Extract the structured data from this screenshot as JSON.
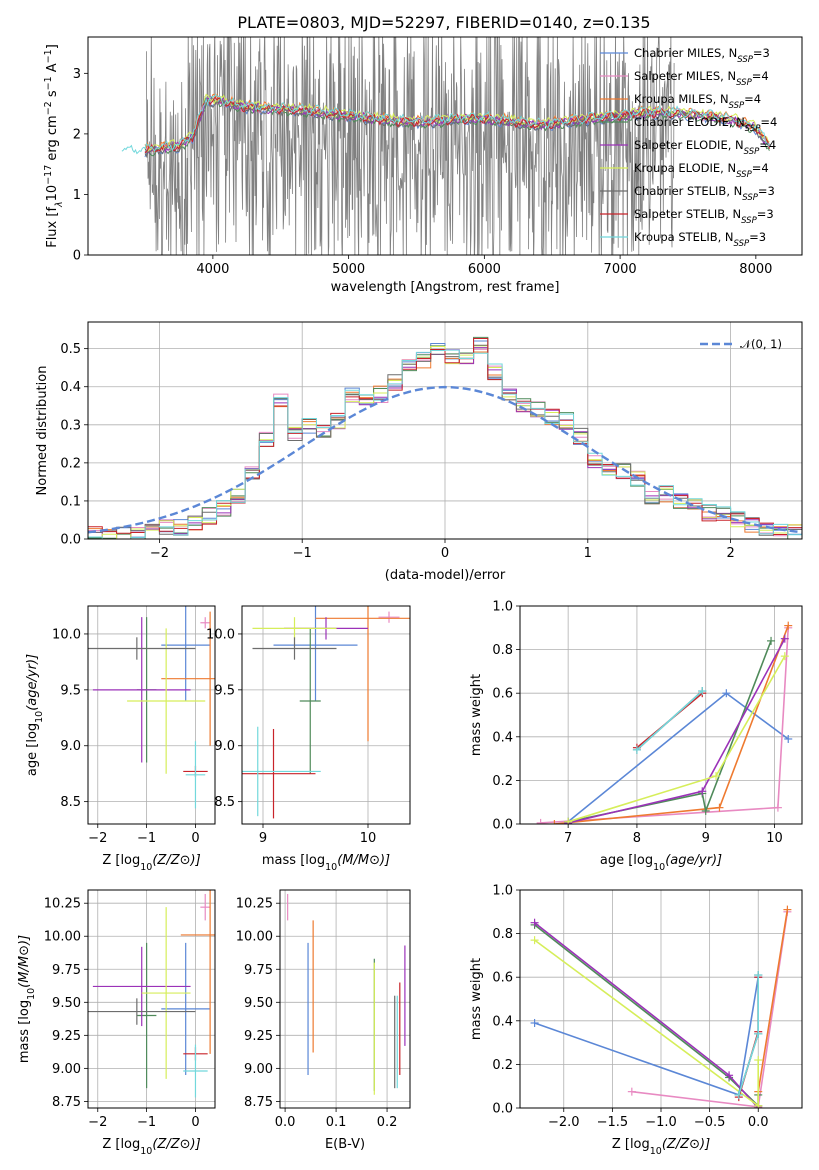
{
  "colors": {
    "Chabrier MILES": "#5b87d6",
    "Salpeter MILES": "#e88ac2",
    "Kroupa MILES": "#ee7a30",
    "Chabrier ELODIE": "#4f8a5a",
    "Salpeter ELODIE": "#9b32b8",
    "Kroupa ELODIE": "#d6ee5a",
    "Chabrier STELIB": "#6d6d6d",
    "Salpeter STELIB": "#c8232a",
    "Kroupa STELIB": "#72d8dc",
    "gaussian": "#5b87d6",
    "spectrum": "#808080"
  },
  "chart_data": [
    {
      "id": "spectrum",
      "type": "line",
      "title": "PLATE=0803, MJD=52297, FIBERID=0140, z=0.135",
      "xlabel": "wavelength [Angstrom, rest frame]",
      "ylabel": "Flux [f",
      "ylabel_sub": "λ",
      "ylabel_rest": "10",
      "ylabel_sup1": "−17",
      "ylabel_mid": " erg cm",
      "ylabel_sup2": "−2",
      "ylabel_mid2": " s",
      "ylabel_sup3": "−1",
      "ylabel_mid3": " A",
      "ylabel_sup4": "−1",
      "ylabel_end": "]",
      "xlim": [
        3080,
        8340
      ],
      "ylim": [
        0,
        3.6
      ],
      "xticks": [
        "4000",
        "5000",
        "6000",
        "7000",
        "8000"
      ],
      "xtick_values": [
        4000,
        5000,
        6000,
        7000,
        8000
      ],
      "yticks": [
        "0",
        "1",
        "2",
        "3"
      ],
      "ytick_values": [
        0,
        1,
        2,
        3
      ],
      "legend_position": "upper-right",
      "legend": [
        {
          "name": "Chabrier MILES",
          "sub": "SSP",
          "n": "3"
        },
        {
          "name": "Salpeter MILES",
          "sub": "SSP",
          "n": "4"
        },
        {
          "name": "Kroupa MILES",
          "sub": "SSP",
          "n": "4"
        },
        {
          "name": "Chabrier ELODIE",
          "sub": "SSP",
          "n": "4"
        },
        {
          "name": "Salpeter ELODIE",
          "sub": "SSP",
          "n": "4"
        },
        {
          "name": "Kroupa ELODIE",
          "sub": "SSP",
          "n": "4"
        },
        {
          "name": "Chabrier STELIB",
          "sub": "SSP",
          "n": "3"
        },
        {
          "name": "Salpeter STELIB",
          "sub": "SSP",
          "n": "3"
        },
        {
          "name": "Kroupa STELIB",
          "sub": "SSP",
          "n": "3"
        }
      ],
      "model_continuum": {
        "x": [
          3330,
          3450,
          3550,
          3650,
          3750,
          3850,
          3950,
          4050,
          4200,
          4400,
          4600,
          4800,
          5000,
          5200,
          5400,
          5600,
          5800,
          6000,
          6200,
          6400,
          6600,
          6800,
          7000,
          7200,
          7400,
          7600,
          7800,
          8000,
          8100
        ],
        "y": [
          1.72,
          1.7,
          1.75,
          1.78,
          1.8,
          1.95,
          2.55,
          2.55,
          2.45,
          2.42,
          2.4,
          2.35,
          2.3,
          2.25,
          2.2,
          2.2,
          2.25,
          2.25,
          2.2,
          2.15,
          2.2,
          2.25,
          2.3,
          2.35,
          2.35,
          2.3,
          2.25,
          2.1,
          1.8
        ]
      }
    },
    {
      "id": "residuals",
      "type": "histogram",
      "xlabel": "(data-model)/error",
      "ylabel": "Normed distribution",
      "xlim": [
        -2.5,
        2.5
      ],
      "ylim": [
        0,
        0.57
      ],
      "xticks": [
        "−2",
        "−1",
        "0",
        "1",
        "2"
      ],
      "xtick_values": [
        -2,
        -1,
        0,
        1,
        2
      ],
      "yticks": [
        "0.0",
        "0.1",
        "0.2",
        "0.3",
        "0.4",
        "0.5"
      ],
      "ytick_values": [
        0,
        0.1,
        0.2,
        0.3,
        0.4,
        0.5
      ],
      "legend": "𝒩(0, 1)",
      "bins": [
        -2.5,
        -2.4,
        -2.3,
        -2.2,
        -2.1,
        -2.0,
        -1.9,
        -1.8,
        -1.7,
        -1.6,
        -1.5,
        -1.4,
        -1.3,
        -1.2,
        -1.1,
        -1.0,
        -0.9,
        -0.8,
        -0.7,
        -0.6,
        -0.5,
        -0.4,
        -0.3,
        -0.2,
        -0.1,
        0.0,
        0.1,
        0.2,
        0.3,
        0.4,
        0.5,
        0.6,
        0.7,
        0.8,
        0.9,
        1.0,
        1.1,
        1.2,
        1.3,
        1.4,
        1.5,
        1.6,
        1.7,
        1.8,
        1.9,
        2.0,
        2.1,
        2.2,
        2.3,
        2.4,
        2.5
      ],
      "base_values": [
        0.01,
        0.005,
        0.01,
        0.01,
        0.02,
        0.03,
        0.03,
        0.04,
        0.06,
        0.08,
        0.11,
        0.17,
        0.26,
        0.36,
        0.28,
        0.3,
        0.28,
        0.31,
        0.38,
        0.37,
        0.38,
        0.41,
        0.45,
        0.47,
        0.5,
        0.48,
        0.47,
        0.51,
        0.44,
        0.38,
        0.35,
        0.34,
        0.32,
        0.31,
        0.27,
        0.21,
        0.19,
        0.18,
        0.16,
        0.11,
        0.12,
        0.1,
        0.1,
        0.07,
        0.07,
        0.05,
        0.04,
        0.03,
        0.02,
        0.02
      ],
      "gaussian": {
        "mu": 0,
        "sigma": 1
      }
    },
    {
      "id": "age-vs-Z",
      "type": "errorbar",
      "xlabel": "Z [log",
      "xlabel_sub": "10",
      "xlabel_end": "(Z/Z⊙)]",
      "ylabel": "age  [log",
      "ylabel_sub": "10",
      "ylabel_end": "(age/yr)]",
      "xlim": [
        -2.2,
        0.4
      ],
      "ylim": [
        8.3,
        10.25
      ],
      "xticks": [
        "−2",
        "−1",
        "0"
      ],
      "xtick_values": [
        -2,
        -1,
        0
      ],
      "yticks": [
        "8.5",
        "9.0",
        "9.5",
        "10.0"
      ],
      "ytick_values": [
        8.5,
        9.0,
        9.5,
        10.0
      ],
      "points": [
        {
          "model": "Chabrier MILES",
          "x": -0.2,
          "y": 9.9,
          "xerr": 0.5,
          "yerr": 0.5
        },
        {
          "model": "Salpeter MILES",
          "x": 0.2,
          "y": 10.1,
          "xerr": 0.1,
          "yerr": 0.05
        },
        {
          "model": "Kroupa MILES",
          "x": 0.3,
          "y": 9.6,
          "xerr": 1.0,
          "yerr": 0.6
        },
        {
          "model": "Chabrier ELODIE",
          "x": -1.0,
          "y": 9.5,
          "xerr": 0.2,
          "yerr": 0.65
        },
        {
          "model": "Salpeter ELODIE",
          "x": -1.1,
          "y": 9.5,
          "xerr": 1.0,
          "yerr": 0.65
        },
        {
          "model": "Kroupa ELODIE",
          "x": -0.6,
          "y": 9.4,
          "xerr": 0.8,
          "yerr": 0.65
        },
        {
          "model": "Chabrier STELIB",
          "x": -1.2,
          "y": 9.87,
          "xerr": 1.2,
          "yerr": 0.1
        },
        {
          "model": "Salpeter STELIB",
          "x": 0.0,
          "y": 8.77,
          "xerr": 0.25,
          "yerr": 0.05
        },
        {
          "model": "Kroupa STELIB",
          "x": 0.0,
          "y": 8.74,
          "xerr": 0.2,
          "yerr": 0.3
        }
      ]
    },
    {
      "id": "age-vs-mass",
      "type": "errorbar",
      "xlabel": "mass [log",
      "xlabel_sub": "10",
      "xlabel_end": "(M/M⊙)]",
      "xlim": [
        8.8,
        10.4
      ],
      "ylim": [
        8.3,
        10.25
      ],
      "xticks": [
        "9",
        "10"
      ],
      "xtick_values": [
        9,
        10
      ],
      "yticks": [
        "8.5",
        "9.0",
        "9.5",
        "10.0"
      ],
      "ytick_values": [
        8.5,
        9.0,
        9.5,
        10.0
      ],
      "points": [
        {
          "model": "Chabrier MILES",
          "x": 9.5,
          "y": 9.9,
          "xerr": 0.4,
          "yerr": 0.5
        },
        {
          "model": "Salpeter MILES",
          "x": 10.2,
          "y": 10.15,
          "xerr": 0.1,
          "yerr": 0.05
        },
        {
          "model": "Kroupa MILES",
          "x": 10.0,
          "y": 10.14,
          "xerr": 0.5,
          "yerr": 1.1
        },
        {
          "model": "Chabrier ELODIE",
          "x": 9.45,
          "y": 9.4,
          "xerr": 0.1,
          "yerr": 0.65
        },
        {
          "model": "Salpeter ELODIE",
          "x": 9.6,
          "y": 10.05,
          "xerr": 0.4,
          "yerr": 0.1
        },
        {
          "model": "Kroupa ELODIE",
          "x": 9.3,
          "y": 10.05,
          "xerr": 0.4,
          "yerr": 0.1
        },
        {
          "model": "Chabrier STELIB",
          "x": 9.3,
          "y": 9.87,
          "xerr": 0.4,
          "yerr": 0.1
        },
        {
          "model": "Salpeter STELIB",
          "x": 9.1,
          "y": 8.75,
          "xerr": 0.4,
          "yerr": 0.4
        },
        {
          "model": "Kroupa STELIB",
          "x": 8.95,
          "y": 8.77,
          "xerr": 0.6,
          "yerr": 0.4
        }
      ]
    },
    {
      "id": "weight-vs-age",
      "type": "line",
      "xlabel": "age  [log",
      "xlabel_sub": "10",
      "xlabel_end": "(age/yr)]",
      "ylabel": "mass weight",
      "xlim": [
        6.3,
        10.4
      ],
      "ylim": [
        0,
        1.0
      ],
      "xticks": [
        "7",
        "8",
        "9",
        "10"
      ],
      "xtick_values": [
        7,
        8,
        9,
        10
      ],
      "yticks": [
        "0.0",
        "0.2",
        "0.4",
        "0.6",
        "0.8",
        "1.0"
      ],
      "ytick_values": [
        0,
        0.2,
        0.4,
        0.6,
        0.8,
        1.0
      ],
      "series": [
        {
          "model": "Chabrier MILES",
          "x": [
            7.0,
            9.3,
            10.2
          ],
          "y": [
            0.01,
            0.6,
            0.39
          ]
        },
        {
          "model": "Salpeter MILES",
          "x": [
            6.6,
            10.05,
            10.2
          ],
          "y": [
            0.005,
            0.075,
            0.9
          ]
        },
        {
          "model": "Kroupa MILES",
          "x": [
            6.8,
            9.2,
            10.2
          ],
          "y": [
            0.0,
            0.075,
            0.91
          ]
        },
        {
          "model": "Chabrier ELODIE",
          "x": [
            7.0,
            8.95,
            9.0,
            9.95
          ],
          "y": [
            0.01,
            0.14,
            0.06,
            0.84
          ]
        },
        {
          "model": "Salpeter ELODIE",
          "x": [
            7.0,
            8.95,
            10.15
          ],
          "y": [
            0.005,
            0.15,
            0.85
          ]
        },
        {
          "model": "Kroupa ELODIE",
          "x": [
            7.0,
            9.15,
            10.15
          ],
          "y": [
            0.01,
            0.22,
            0.77
          ]
        },
        {
          "model": "Chabrier STELIB",
          "x": [
            8.0,
            8.95
          ],
          "y": [
            0.34,
            0.61
          ]
        },
        {
          "model": "Salpeter STELIB",
          "x": [
            8.0,
            8.95
          ],
          "y": [
            0.35,
            0.6
          ]
        },
        {
          "model": "Kroupa STELIB",
          "x": [
            8.0,
            8.95
          ],
          "y": [
            0.34,
            0.61
          ]
        }
      ]
    },
    {
      "id": "mass-vs-Z",
      "type": "errorbar",
      "xlabel": "Z [log",
      "xlabel_sub": "10",
      "xlabel_end": "(Z/Z⊙)]",
      "ylabel": "mass [log",
      "ylabel_sub": "10",
      "ylabel_end": "(M/M⊙)]",
      "xlim": [
        -2.2,
        0.4
      ],
      "ylim": [
        8.7,
        10.35
      ],
      "xticks": [
        "−2",
        "−1",
        "0"
      ],
      "xtick_values": [
        -2,
        -1,
        0
      ],
      "yticks": [
        "8.75",
        "9.00",
        "9.25",
        "9.50",
        "9.75",
        "10.00",
        "10.25"
      ],
      "ytick_values": [
        8.75,
        9.0,
        9.25,
        9.5,
        9.75,
        10.0,
        10.25
      ],
      "points": [
        {
          "model": "Chabrier MILES",
          "x": -0.2,
          "y": 9.45,
          "xerr": 0.5,
          "yerr": 0.5
        },
        {
          "model": "Salpeter MILES",
          "x": 0.2,
          "y": 10.22,
          "xerr": 0.1,
          "yerr": 0.1
        },
        {
          "model": "Kroupa MILES",
          "x": 0.3,
          "y": 10.01,
          "xerr": 0.6,
          "yerr": 0.9
        },
        {
          "model": "Chabrier ELODIE",
          "x": -1.0,
          "y": 9.4,
          "xerr": 0.2,
          "yerr": 0.55
        },
        {
          "model": "Salpeter ELODIE",
          "x": -1.1,
          "y": 9.62,
          "xerr": 1.0,
          "yerr": 0.3
        },
        {
          "model": "Kroupa ELODIE",
          "x": -0.6,
          "y": 9.57,
          "xerr": 0.5,
          "yerr": 0.65
        },
        {
          "model": "Chabrier STELIB",
          "x": -1.2,
          "y": 9.43,
          "xerr": 1.2,
          "yerr": 0.1
        },
        {
          "model": "Salpeter STELIB",
          "x": 0.0,
          "y": 9.11,
          "xerr": 0.25,
          "yerr": 0.05
        },
        {
          "model": "Kroupa STELIB",
          "x": 0.0,
          "y": 8.98,
          "xerr": 0.25,
          "yerr": 0.2
        }
      ]
    },
    {
      "id": "mass-vs-ebv",
      "type": "errorbar",
      "xlabel": "E(B-V)",
      "xlim": [
        -0.01,
        0.245
      ],
      "ylim": [
        8.7,
        10.35
      ],
      "xticks": [
        "0.0",
        "0.1",
        "0.2"
      ],
      "xtick_values": [
        0.0,
        0.1,
        0.2
      ],
      "yticks": [
        "8.75",
        "9.00",
        "9.25",
        "9.50",
        "9.75",
        "10.00",
        "10.25"
      ],
      "ytick_values": [
        8.75,
        9.0,
        9.25,
        9.5,
        9.75,
        10.0,
        10.25
      ],
      "points": [
        {
          "model": "Chabrier MILES",
          "x": 0.045,
          "y": 9.45,
          "xerr": 0.0,
          "yerr": 0.5
        },
        {
          "model": "Salpeter MILES",
          "x": 0.005,
          "y": 10.22,
          "xerr": 0.0,
          "yerr": 0.1
        },
        {
          "model": "Kroupa MILES",
          "x": 0.055,
          "y": 9.62,
          "xerr": 0.0,
          "yerr": 0.5
        },
        {
          "model": "Chabrier ELODIE",
          "x": 0.175,
          "y": 9.33,
          "xerr": 0.0,
          "yerr": 0.5
        },
        {
          "model": "Salpeter ELODIE",
          "x": 0.235,
          "y": 9.55,
          "xerr": 0.0,
          "yerr": 0.38
        },
        {
          "model": "Kroupa ELODIE",
          "x": 0.175,
          "y": 9.3,
          "xerr": 0.0,
          "yerr": 0.5
        },
        {
          "model": "Chabrier STELIB",
          "x": 0.215,
          "y": 9.2,
          "xerr": 0.0,
          "yerr": 0.35
        },
        {
          "model": "Salpeter STELIB",
          "x": 0.225,
          "y": 9.3,
          "xerr": 0.0,
          "yerr": 0.35
        },
        {
          "model": "Kroupa STELIB",
          "x": 0.22,
          "y": 9.2,
          "xerr": 0.0,
          "yerr": 0.35
        }
      ]
    },
    {
      "id": "weight-vs-Z",
      "type": "line",
      "xlabel": "Z [log",
      "xlabel_sub": "10",
      "xlabel_end": "(Z/Z⊙)]",
      "ylabel": "mass weight",
      "xlim": [
        -2.45,
        0.45
      ],
      "ylim": [
        0,
        1.0
      ],
      "xticks": [
        "−2.0",
        "−1.5",
        "−1.0",
        "−0.5",
        "0.0"
      ],
      "xtick_values": [
        -2.0,
        -1.5,
        -1.0,
        -0.5,
        0.0
      ],
      "yticks": [
        "0.0",
        "0.2",
        "0.4",
        "0.6",
        "0.8",
        "1.0"
      ],
      "ytick_values": [
        0,
        0.2,
        0.4,
        0.6,
        0.8,
        1.0
      ],
      "series": [
        {
          "model": "Chabrier MILES",
          "x": [
            -2.3,
            -0.2,
            0.0
          ],
          "y": [
            0.39,
            0.06,
            0.6
          ]
        },
        {
          "model": "Salpeter MILES",
          "x": [
            -1.3,
            0.0,
            0.3
          ],
          "y": [
            0.075,
            0.005,
            0.9
          ]
        },
        {
          "model": "Kroupa MILES",
          "x": [
            0.0,
            0.0,
            0.3
          ],
          "y": [
            0.0,
            0.075,
            0.91
          ]
        },
        {
          "model": "Chabrier ELODIE",
          "x": [
            -2.3,
            -0.3,
            0.0,
            0.0
          ],
          "y": [
            0.84,
            0.14,
            0.01,
            0.06
          ]
        },
        {
          "model": "Salpeter ELODIE",
          "x": [
            -2.3,
            -0.3,
            0.0
          ],
          "y": [
            0.85,
            0.15,
            0.0
          ]
        },
        {
          "model": "Kroupa ELODIE",
          "x": [
            -2.3,
            0.0,
            0.0
          ],
          "y": [
            0.77,
            0.01,
            0.22
          ]
        },
        {
          "model": "Chabrier STELIB",
          "x": [
            -0.2,
            0.0,
            0.0
          ],
          "y": [
            0.06,
            0.34,
            0.61
          ]
        },
        {
          "model": "Salpeter STELIB",
          "x": [
            -0.2,
            0.0,
            0.0
          ],
          "y": [
            0.05,
            0.35,
            0.6
          ]
        },
        {
          "model": "Kroupa STELIB",
          "x": [
            -0.2,
            0.0,
            0.0
          ],
          "y": [
            0.06,
            0.34,
            0.61
          ]
        }
      ]
    }
  ]
}
